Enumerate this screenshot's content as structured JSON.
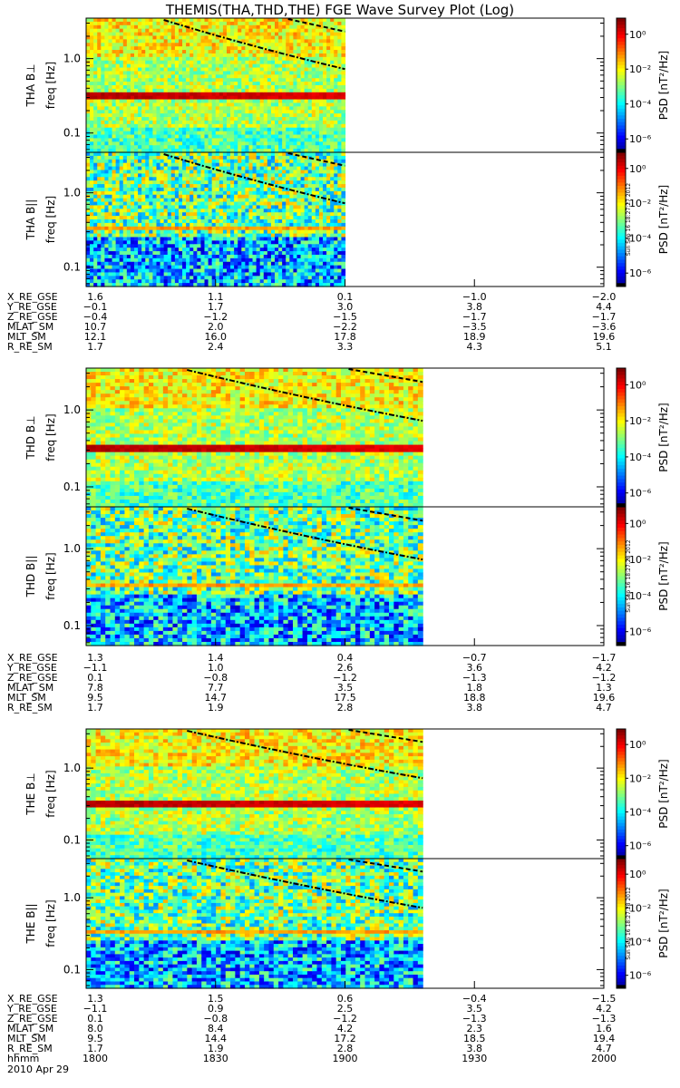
{
  "title": "THEMIS(THA,THD,THE) FGE Wave Survey Plot (Log)",
  "date_label": "2010 Apr 29",
  "stamps": [
    "Sun Sep 16 18:27:27 2012",
    "Sun Sep 16 18:27:28 2012",
    "Sun Sep 16 18:27:28 2012"
  ],
  "colorbar": {
    "label_prefix": "PSD",
    "unit": "[nT²/Hz]",
    "tick_labels": [
      "10⁰",
      "10⁻²",
      "10⁻⁴",
      "10⁻⁶"
    ]
  },
  "time_axis": {
    "label": "hhmm",
    "ticks": [
      "1800",
      "1830",
      "1900",
      "1930",
      "2000"
    ]
  },
  "chart_data": [
    {
      "type": "heatmap",
      "ylabel": "THA B⊥",
      "ylabel2": "freq [Hz]",
      "yscale": "log",
      "ylim": [
        0.055,
        3.5
      ],
      "yticks": [
        "1.0",
        "0.1"
      ],
      "xlim": [
        "1800",
        "2000"
      ],
      "data_end": "1900",
      "dominant": "line",
      "zlim": [
        "1e-6",
        "1e1"
      ]
    },
    {
      "type": "heatmap",
      "ylabel": "THA B||",
      "ylabel2": "freq [Hz]",
      "yscale": "log",
      "ylim": [
        0.055,
        3.5
      ],
      "yticks": [
        "1.0",
        "0.1"
      ],
      "xlim": [
        "1800",
        "2000"
      ],
      "data_end": "1900",
      "dominant": "noise",
      "zlim": [
        "1e-6",
        "1e1"
      ]
    },
    {
      "type": "heatmap",
      "ylabel": "THD B⊥",
      "ylabel2": "freq [Hz]",
      "yscale": "log",
      "ylim": [
        0.055,
        3.5
      ],
      "yticks": [
        "1.0",
        "0.1"
      ],
      "xlim": [
        "1800",
        "2000"
      ],
      "data_end": "1918",
      "dominant": "line",
      "zlim": [
        "1e-6",
        "1e1"
      ]
    },
    {
      "type": "heatmap",
      "ylabel": "THD B||",
      "ylabel2": "freq [Hz]",
      "yscale": "log",
      "ylim": [
        0.055,
        3.5
      ],
      "yticks": [
        "1.0",
        "0.1"
      ],
      "xlim": [
        "1800",
        "2000"
      ],
      "data_end": "1918",
      "dominant": "noise",
      "zlim": [
        "1e-6",
        "1e1"
      ]
    },
    {
      "type": "heatmap",
      "ylabel": "THE B⊥",
      "ylabel2": "freq [Hz]",
      "yscale": "log",
      "ylim": [
        0.055,
        3.5
      ],
      "yticks": [
        "1.0",
        "0.1"
      ],
      "xlim": [
        "1800",
        "2000"
      ],
      "data_end": "1918",
      "dominant": "line",
      "zlim": [
        "1e-6",
        "1e1"
      ]
    },
    {
      "type": "heatmap",
      "ylabel": "THE B||",
      "ylabel2": "freq [Hz]",
      "yscale": "log",
      "ylim": [
        0.055,
        3.5
      ],
      "yticks": [
        "1.0",
        "0.1"
      ],
      "xlim": [
        "1800",
        "2000"
      ],
      "data_end": "1918",
      "dominant": "noise",
      "zlim": [
        "1e-6",
        "1e1"
      ]
    }
  ],
  "ephemeris": [
    {
      "rows": [
        {
          "name": "X_RE_GSE",
          "values": [
            "1.6",
            "1.1",
            "0.1",
            "−1.0",
            "−2.0"
          ]
        },
        {
          "name": "Y_RE_GSE",
          "values": [
            "−0.1",
            "1.7",
            "3.0",
            "3.8",
            "4.4"
          ]
        },
        {
          "name": "Z_RE_GSE",
          "values": [
            "−0.4",
            "−1.2",
            "−1.5",
            "−1.7",
            "−1.7"
          ]
        },
        {
          "name": "MLAT_SM",
          "values": [
            "10.7",
            "2.0",
            "−2.2",
            "−3.5",
            "−3.6"
          ]
        },
        {
          "name": "MLT_SM",
          "values": [
            "12.1",
            "16.0",
            "17.8",
            "18.9",
            "19.6"
          ]
        },
        {
          "name": "R_RE_SM",
          "values": [
            "1.7",
            "2.4",
            "3.3",
            "4.3",
            "5.1"
          ]
        }
      ]
    },
    {
      "rows": [
        {
          "name": "X_RE_GSE",
          "values": [
            "1.3",
            "1.4",
            "0.4",
            "−0.7",
            "−1.7"
          ]
        },
        {
          "name": "Y_RE_GSE",
          "values": [
            "−1.1",
            "1.0",
            "2.6",
            "3.6",
            "4.2"
          ]
        },
        {
          "name": "Z_RE_GSE",
          "values": [
            "0.1",
            "−0.8",
            "−1.2",
            "−1.3",
            "−1.2"
          ]
        },
        {
          "name": "MLAT_SM",
          "values": [
            "7.8",
            "7.7",
            "3.5",
            "1.8",
            "1.3"
          ]
        },
        {
          "name": "MLT_SM",
          "values": [
            "9.5",
            "14.7",
            "17.5",
            "18.8",
            "19.6"
          ]
        },
        {
          "name": "R_RE_SM",
          "values": [
            "1.7",
            "1.9",
            "2.8",
            "3.8",
            "4.7"
          ]
        }
      ]
    },
    {
      "rows": [
        {
          "name": "X_RE_GSE",
          "values": [
            "1.3",
            "1.5",
            "0.6",
            "−0.4",
            "−1.5"
          ]
        },
        {
          "name": "Y_RE_GSE",
          "values": [
            "−1.1",
            "0.9",
            "2.5",
            "3.5",
            "4.2"
          ]
        },
        {
          "name": "Z_RE_GSE",
          "values": [
            "0.1",
            "−0.8",
            "−1.2",
            "−1.3",
            "−1.3"
          ]
        },
        {
          "name": "MLAT_SM",
          "values": [
            "8.0",
            "8.4",
            "4.2",
            "2.3",
            "1.6"
          ]
        },
        {
          "name": "MLT_SM",
          "values": [
            "9.5",
            "14.4",
            "17.2",
            "18.5",
            "19.4"
          ]
        },
        {
          "name": "R_RE_SM",
          "values": [
            "1.7",
            "1.9",
            "2.8",
            "3.8",
            "4.7"
          ]
        }
      ]
    }
  ],
  "colors": {
    "background": "#ffffff",
    "axis": "#000000",
    "line_band": "#e01010"
  }
}
